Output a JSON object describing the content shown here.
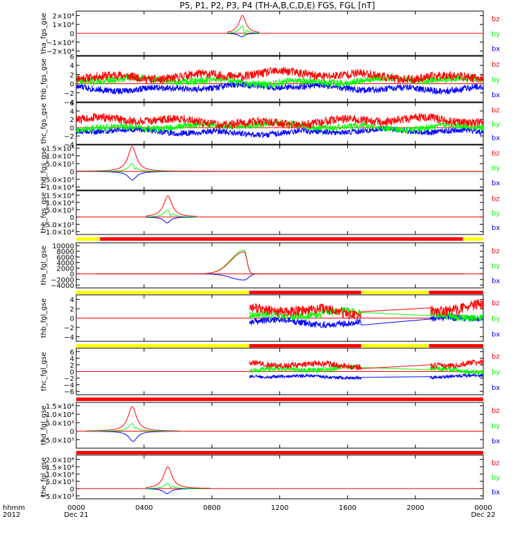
{
  "title": "P5, P1, P2, P3, P4 (TH-A,B,C,D,E) FGS, FGL [nT]",
  "colors": {
    "bz": "#ff0000",
    "by": "#00ff00",
    "bx": "#0000ff",
    "flag_red": "#ff0000",
    "flag_yellow": "#ffff00",
    "axis": "#000000"
  },
  "xaxis": {
    "row_labels": [
      "hhmm",
      "2012"
    ],
    "ticks": [
      {
        "t": 0,
        "label": "0000",
        "sub": "Dec 21"
      },
      {
        "t": 4,
        "label": "0400",
        "sub": ""
      },
      {
        "t": 8,
        "label": "0800",
        "sub": ""
      },
      {
        "t": 12,
        "label": "1200",
        "sub": ""
      },
      {
        "t": 16,
        "label": "1600",
        "sub": ""
      },
      {
        "t": 20,
        "label": "2000",
        "sub": ""
      },
      {
        "t": 24,
        "label": "0000",
        "sub": "Dec 22"
      }
    ],
    "range_hours": [
      0,
      24
    ]
  },
  "chart_data": [
    {
      "type": "line",
      "panel": "tha_fgs_gse",
      "ylabel": "tha_fgs_gse",
      "ylim": [
        -25000,
        25000
      ],
      "yticks": [
        {
          "v": 20000,
          "label": "2×10⁴"
        },
        {
          "v": 10000,
          "label": "1×10⁴"
        },
        {
          "v": 0,
          "label": "0"
        },
        {
          "v": -10000,
          "label": "−1×10⁴"
        },
        {
          "v": -20000,
          "label": "−2×10⁴"
        }
      ],
      "legend": [
        "bz",
        "by",
        "bx"
      ],
      "series": [
        {
          "name": "bz",
          "model": "peak",
          "center": 9.8,
          "width": 0.25,
          "amp": 20000,
          "ts": 8.9,
          "te": 10.8
        },
        {
          "name": "by",
          "model": "peak",
          "center": 9.8,
          "width": 0.22,
          "amp": 8000,
          "flip": -9000,
          "ts": 8.9,
          "te": 10.8
        },
        {
          "name": "bx",
          "model": "peak",
          "center": 9.75,
          "width": 0.2,
          "amp": -4000,
          "ts": 8.9,
          "te": 10.8
        }
      ]
    },
    {
      "type": "line",
      "panel": "thb_fgs_gse",
      "ylabel": "thb_fgs_gse",
      "ylim": [
        -4,
        6
      ],
      "yticks": [
        {
          "v": 6,
          "label": "6"
        },
        {
          "v": 4,
          "label": "4"
        },
        {
          "v": 2,
          "label": "2"
        },
        {
          "v": 0,
          "label": "0"
        },
        {
          "v": -2,
          "label": "−2"
        },
        {
          "v": -4,
          "label": "−4"
        }
      ],
      "legend": [
        "bz",
        "by",
        "bx"
      ],
      "series": [
        {
          "name": "bz",
          "model": "noise",
          "base": 1.8,
          "amp": 1.2,
          "seed": 11,
          "ts": 0,
          "te": 24
        },
        {
          "name": "by",
          "model": "noise",
          "base": 0.6,
          "amp": 1.0,
          "seed": 22,
          "ts": 0,
          "te": 24
        },
        {
          "name": "bx",
          "model": "noise",
          "base": -0.9,
          "amp": 0.9,
          "seed": 33,
          "ts": 0,
          "te": 24
        }
      ]
    },
    {
      "type": "line",
      "panel": "thc_fgs_gse",
      "ylabel": "thc_fgs_gse",
      "ylim": [
        -4,
        6
      ],
      "yticks": [
        {
          "v": 6,
          "label": "6"
        },
        {
          "v": 4,
          "label": "4"
        },
        {
          "v": 2,
          "label": "2"
        },
        {
          "v": 0,
          "label": "0"
        },
        {
          "v": -2,
          "label": "−2"
        },
        {
          "v": -4,
          "label": "−4"
        }
      ],
      "legend": [
        "bz",
        "by",
        "bx"
      ],
      "series": [
        {
          "name": "bz",
          "model": "noise",
          "base": 1.5,
          "amp": 1.3,
          "seed": 44,
          "ts": 0,
          "te": 24
        },
        {
          "name": "by",
          "model": "noise",
          "base": 0.3,
          "amp": 1.0,
          "seed": 55,
          "ts": 0,
          "te": 24
        },
        {
          "name": "bx",
          "model": "noise",
          "base": -1.0,
          "amp": 0.9,
          "seed": 66,
          "ts": 0,
          "te": 24
        }
      ]
    },
    {
      "type": "line",
      "panel": "thd_fgs_gse",
      "ylabel": "thd_fgs_gse",
      "ylim": [
        -12000,
        17000
      ],
      "yticks": [
        {
          "v": 15000,
          "label": "1.5×10⁴"
        },
        {
          "v": 10000,
          "label": "1.0×10⁴"
        },
        {
          "v": 5000,
          "label": "5.0×10³"
        },
        {
          "v": 0,
          "label": "0"
        },
        {
          "v": -5000,
          "label": "−5.0×10³"
        },
        {
          "v": -10000,
          "label": "−1.0×10⁴"
        }
      ],
      "legend": [
        "bz",
        "by",
        "bx"
      ],
      "series": [
        {
          "name": "bz",
          "model": "peak",
          "center": 3.3,
          "width": 0.3,
          "amp": 16000,
          "ts": 0,
          "te": 24
        },
        {
          "name": "by",
          "model": "peak",
          "center": 3.3,
          "width": 0.25,
          "amp": 5000,
          "flip": -2000,
          "ts": 0,
          "te": 24
        },
        {
          "name": "bx",
          "model": "peak",
          "center": 3.3,
          "width": 0.3,
          "amp": -5500,
          "ts": 0,
          "te": 24
        }
      ]
    },
    {
      "type": "line",
      "panel": "the_fgs_gse",
      "ylabel": "the_fgs_gse",
      "ylim": [
        -12000,
        18000
      ],
      "yticks": [
        {
          "v": 15000,
          "label": "1.5×10⁴"
        },
        {
          "v": 10000,
          "label": "1.0×10⁴"
        },
        {
          "v": 5000,
          "label": "5.0×10³"
        },
        {
          "v": 0,
          "label": "0"
        },
        {
          "v": -5000,
          "label": "−5.0×10³"
        },
        {
          "v": -10000,
          "label": "−1.0×10⁴"
        }
      ],
      "legend": [
        "bz",
        "by",
        "bx"
      ],
      "series": [
        {
          "name": "bz",
          "model": "peak",
          "center": 5.4,
          "width": 0.3,
          "amp": 14500,
          "ts": 4.1,
          "te": 7.1
        },
        {
          "name": "by",
          "model": "peak",
          "center": 5.4,
          "width": 0.25,
          "amp": 5000,
          "flip": -3000,
          "ts": 4.1,
          "te": 7.1
        },
        {
          "name": "bx",
          "model": "peak",
          "center": 5.35,
          "width": 0.25,
          "amp": -4000,
          "ts": 4.1,
          "te": 7.1
        }
      ]
    },
    {
      "type": "line",
      "panel": "tha_fgl_gse",
      "ylabel": "tha_fgl_gse",
      "ylim": [
        -5000,
        11000
      ],
      "yticks": [
        {
          "v": 10000,
          "label": "10000"
        },
        {
          "v": 8000,
          "label": "8000"
        },
        {
          "v": 6000,
          "label": "6000"
        },
        {
          "v": 4000,
          "label": "4000"
        },
        {
          "v": 2000,
          "label": "2000"
        },
        {
          "v": 0,
          "label": "0"
        },
        {
          "v": -2000,
          "label": "−2000"
        },
        {
          "v": -4000,
          "label": "−4000"
        }
      ],
      "legend": [
        "bz",
        "by",
        "bx"
      ],
      "series": [
        {
          "name": "bz",
          "model": "asym",
          "center": 9.9,
          "rise": 1.2,
          "fall": 0.25,
          "amp": 7800,
          "ts": 1.2,
          "te": 22.9
        },
        {
          "name": "by",
          "model": "asym",
          "center": 9.9,
          "rise": 1.2,
          "fall": 0.25,
          "amp": 8400,
          "ts": 1.2,
          "te": 22.9
        },
        {
          "name": "bx",
          "model": "asym",
          "center": 9.9,
          "rise": 1.2,
          "fall": 0.4,
          "amp": -2200,
          "ts": 1.2,
          "te": 22.9
        }
      ]
    },
    {
      "type": "line",
      "panel": "thb_fgl_gse",
      "ylabel": "thb_fgl_gse",
      "ylim": [
        -5,
        5
      ],
      "yticks": [
        {
          "v": 4,
          "label": "4"
        },
        {
          "v": 2,
          "label": "2"
        },
        {
          "v": 0,
          "label": "0"
        },
        {
          "v": -2,
          "label": "−2"
        },
        {
          "v": -4,
          "label": "−4"
        }
      ],
      "legend": [
        "bz",
        "by",
        "bx"
      ],
      "series": [
        {
          "name": "bz",
          "model": "noise",
          "base": 1.5,
          "amp": 1.4,
          "seed": 77,
          "ts": 10.2,
          "te": 16.8,
          "gap_to": 20.9,
          "gap_end": 2.2,
          "te2": 24
        },
        {
          "name": "by",
          "model": "noise",
          "base": 0.8,
          "amp": 1.0,
          "seed": 88,
          "ts": 10.2,
          "te": 16.8,
          "gap_to": 20.9,
          "gap_end": 0.5,
          "te2": 24
        },
        {
          "name": "bx",
          "model": "noise",
          "base": -0.9,
          "amp": 0.9,
          "seed": 99,
          "ts": 10.2,
          "te": 16.8,
          "gap_to": 20.9,
          "gap_end": -0.2,
          "te2": 24
        }
      ]
    },
    {
      "type": "line",
      "panel": "thc_fgl_gse",
      "ylabel": "thc_fgl_gse",
      "ylim": [
        -7,
        7
      ],
      "yticks": [
        {
          "v": 6,
          "label": "6"
        },
        {
          "v": 4,
          "label": "4"
        },
        {
          "v": 2,
          "label": "2"
        },
        {
          "v": 0,
          "label": "0"
        },
        {
          "v": -2,
          "label": "−2"
        },
        {
          "v": -4,
          "label": "−4"
        },
        {
          "v": -6,
          "label": "−6"
        }
      ],
      "legend": [
        "bz",
        "by",
        "bx"
      ],
      "series": [
        {
          "name": "bz",
          "model": "noise",
          "base": 2.2,
          "amp": 1.1,
          "seed": 121,
          "ts": 10.2,
          "te": 16.8,
          "gap_to": 20.9,
          "gap_end": 2.0,
          "te2": 24
        },
        {
          "name": "by",
          "model": "noise",
          "base": 0.6,
          "amp": 1.0,
          "seed": 131,
          "ts": 10.2,
          "te": 16.8,
          "gap_to": 20.9,
          "gap_end": 0.5,
          "te2": 24
        },
        {
          "name": "bx",
          "model": "noise",
          "base": -1.5,
          "amp": 0.6,
          "seed": 141,
          "ts": 10.2,
          "te": 16.8,
          "gap_to": 20.9,
          "gap_end": -1.5,
          "te2": 24
        }
      ]
    },
    {
      "type": "line",
      "panel": "thd_fgl_gse",
      "ylabel": "thd_fgl_gse",
      "ylim": [
        -10000,
        17000
      ],
      "yticks": [
        {
          "v": 15000,
          "label": "1.5×10⁴"
        },
        {
          "v": 10000,
          "label": "1.0×10⁴"
        },
        {
          "v": 5000,
          "label": "5.0×10³"
        },
        {
          "v": 0,
          "label": "0"
        },
        {
          "v": -5000,
          "label": "−5.0×10³"
        }
      ],
      "legend": [
        "bz",
        "by",
        "bx"
      ],
      "series": [
        {
          "name": "bz",
          "model": "peak",
          "center": 3.3,
          "width": 0.3,
          "amp": 14500,
          "ts": 0.55,
          "te": 6.1
        },
        {
          "name": "by",
          "model": "peak",
          "center": 3.3,
          "width": 0.25,
          "amp": 4500,
          "flip": -1500,
          "ts": 0.55,
          "te": 6.1
        },
        {
          "name": "bx",
          "model": "peak",
          "center": 3.35,
          "width": 0.3,
          "amp": -6000,
          "ts": 0.55,
          "te": 6.1
        }
      ]
    },
    {
      "type": "line",
      "panel": "the_fgl_gse",
      "ylabel": "the_fgl_gse",
      "ylim": [
        -7000,
        23000
      ],
      "yticks": [
        {
          "v": 20000,
          "label": "2.0×10⁴"
        },
        {
          "v": 15000,
          "label": "1.5×10⁴"
        },
        {
          "v": 10000,
          "label": "1.0×10⁴"
        },
        {
          "v": 5000,
          "label": "5.0×10³"
        },
        {
          "v": 0,
          "label": "0"
        },
        {
          "v": -5000,
          "label": "−5.0×10³"
        }
      ],
      "legend": [
        "bz",
        "by",
        "bx"
      ],
      "series": [
        {
          "name": "bz",
          "model": "peak",
          "center": 5.4,
          "width": 0.3,
          "amp": 15000,
          "ts": 4.1,
          "te": 7.9
        },
        {
          "name": "by",
          "model": "peak",
          "center": 5.4,
          "width": 0.25,
          "amp": 3500,
          "flip": -2000,
          "ts": 4.1,
          "te": 7.9
        },
        {
          "name": "bx",
          "model": "peak",
          "center": 5.35,
          "width": 0.25,
          "amp": -3500,
          "ts": 4.1,
          "te": 7.9
        }
      ]
    }
  ],
  "flag_bars": [
    {
      "after_panel": 4,
      "segments": [
        {
          "from": 0,
          "to": 1.4,
          "color": "flag_yellow"
        },
        {
          "from": 1.4,
          "to": 22.8,
          "color": "flag_red"
        },
        {
          "from": 22.8,
          "to": 24,
          "color": "flag_yellow"
        }
      ]
    },
    {
      "after_panel": 5,
      "segments": [
        {
          "from": 0,
          "to": 10.2,
          "color": "flag_yellow"
        },
        {
          "from": 10.2,
          "to": 16.8,
          "color": "flag_red"
        },
        {
          "from": 16.8,
          "to": 20.8,
          "color": "flag_yellow"
        },
        {
          "from": 20.8,
          "to": 24,
          "color": "flag_red"
        }
      ]
    },
    {
      "after_panel": 6,
      "segments": [
        {
          "from": 0,
          "to": 10.2,
          "color": "flag_yellow"
        },
        {
          "from": 10.2,
          "to": 16.8,
          "color": "flag_red"
        },
        {
          "from": 16.8,
          "to": 20.8,
          "color": "flag_yellow"
        },
        {
          "from": 20.8,
          "to": 24,
          "color": "flag_red"
        }
      ]
    },
    {
      "after_panel": 7,
      "segments": [
        {
          "from": 0,
          "to": 24,
          "color": "flag_red"
        }
      ]
    },
    {
      "after_panel": 8,
      "segments": [
        {
          "from": 0,
          "to": 24,
          "color": "flag_red"
        }
      ]
    }
  ]
}
